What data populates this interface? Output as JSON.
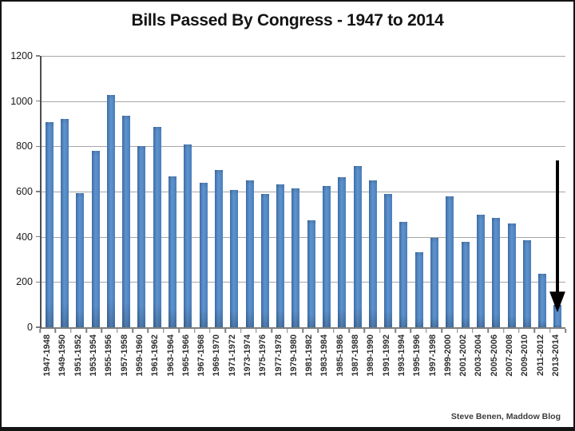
{
  "title": "Bills Passed By Congress - 1947 to 2014",
  "attribution": "Steve Benen, Maddow Blog",
  "colors": {
    "bar": "#4a7ebb",
    "bar_highlight": "#6094cd",
    "bar_shadow": "#3d6da6",
    "gridline": "#a6a6a6",
    "axis": "#7f7f7f",
    "title_text": "#141414",
    "label_text": "#303030",
    "arrow": "#000000",
    "background": "#ffffff",
    "frame_border": "#141414"
  },
  "annotation": {
    "shape": "down-arrow",
    "target_category": "2013-2014"
  },
  "chart_data": {
    "type": "bar",
    "title": "Bills Passed By Congress - 1947 to 2014",
    "categories": [
      "1947-1948",
      "1949-1950",
      "1951-1952",
      "1953-1954",
      "1955-1956",
      "1957-1958",
      "1959-1960",
      "1961-1962",
      "1963-1964",
      "1965-1966",
      "1967-1968",
      "1969-1970",
      "1971-1972",
      "1973-1974",
      "1975-1976",
      "1977-1978",
      "1979-1980",
      "1981-1982",
      "1983-1984",
      "1985-1986",
      "1987-1988",
      "1989-1990",
      "1991-1992",
      "1993-1994",
      "1995-1996",
      "1997-1998",
      "1999-2000",
      "2001-2002",
      "2003-2004",
      "2005-2006",
      "2007-2008",
      "2009-2010",
      "2011-2012",
      "2013-2014"
    ],
    "values": [
      906,
      921,
      594,
      781,
      1028,
      936,
      800,
      885,
      666,
      810,
      640,
      695,
      607,
      649,
      588,
      633,
      613,
      473,
      623,
      664,
      713,
      650,
      590,
      465,
      333,
      394,
      580,
      377,
      498,
      482,
      460,
      383,
      238,
      100
    ],
    "xlabel": "",
    "ylabel": "",
    "ylim": [
      0,
      1200
    ],
    "yticks": [
      0,
      200,
      400,
      600,
      800,
      1000,
      1200
    ],
    "grid": true,
    "legend": false,
    "bar_color": "#4a7ebb"
  }
}
